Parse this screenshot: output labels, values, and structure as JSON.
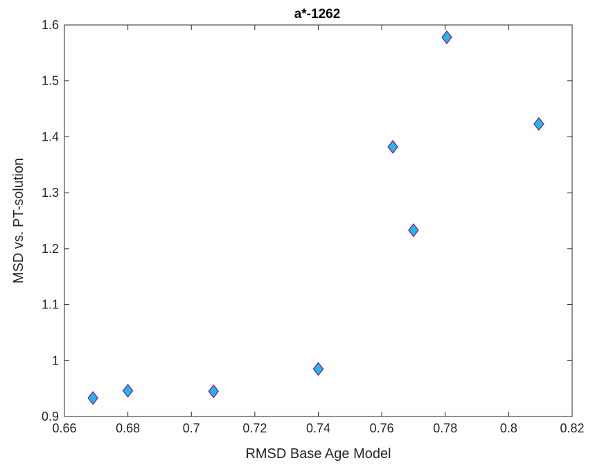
{
  "chart_data": {
    "type": "scatter",
    "title": "a*-1262",
    "xlabel": "RMSD Base Age Model",
    "ylabel": "MSD vs. PT-solution",
    "xlim": [
      0.66,
      0.82
    ],
    "ylim": [
      0.9,
      1.6
    ],
    "x_ticks": [
      "0.66",
      "0.68",
      "0.7",
      "0.72",
      "0.74",
      "0.76",
      "0.78",
      "0.8",
      "0.82"
    ],
    "y_ticks": [
      "0.9",
      "1",
      "1.1",
      "1.2",
      "1.3",
      "1.4",
      "1.5",
      "1.6"
    ],
    "grid": false,
    "marker": "diamond",
    "marker_fill": "#1fb8e8",
    "marker_edge": "#8b1a8b",
    "points": [
      {
        "x": 0.669,
        "y": 0.933
      },
      {
        "x": 0.68,
        "y": 0.946
      },
      {
        "x": 0.707,
        "y": 0.945
      },
      {
        "x": 0.74,
        "y": 0.985
      },
      {
        "x": 0.7635,
        "y": 1.382
      },
      {
        "x": 0.77,
        "y": 1.233
      },
      {
        "x": 0.7805,
        "y": 1.578
      },
      {
        "x": 0.8095,
        "y": 1.423
      }
    ]
  }
}
